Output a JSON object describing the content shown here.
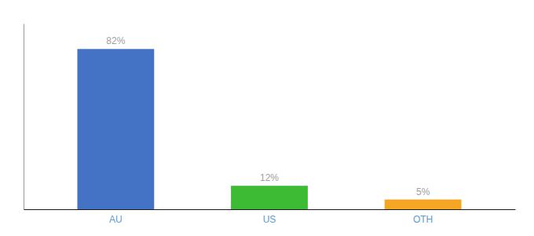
{
  "chart_data": {
    "type": "bar",
    "categories": [
      "AU",
      "US",
      "OTH"
    ],
    "values": [
      82,
      12,
      5
    ],
    "value_labels": [
      "82%",
      "12%",
      "5%"
    ],
    "colors": [
      "#4472c4",
      "#3dbb35",
      "#f5a623"
    ],
    "ylim": [
      0,
      95
    ],
    "data_labels": true,
    "tick_labels": "x"
  }
}
